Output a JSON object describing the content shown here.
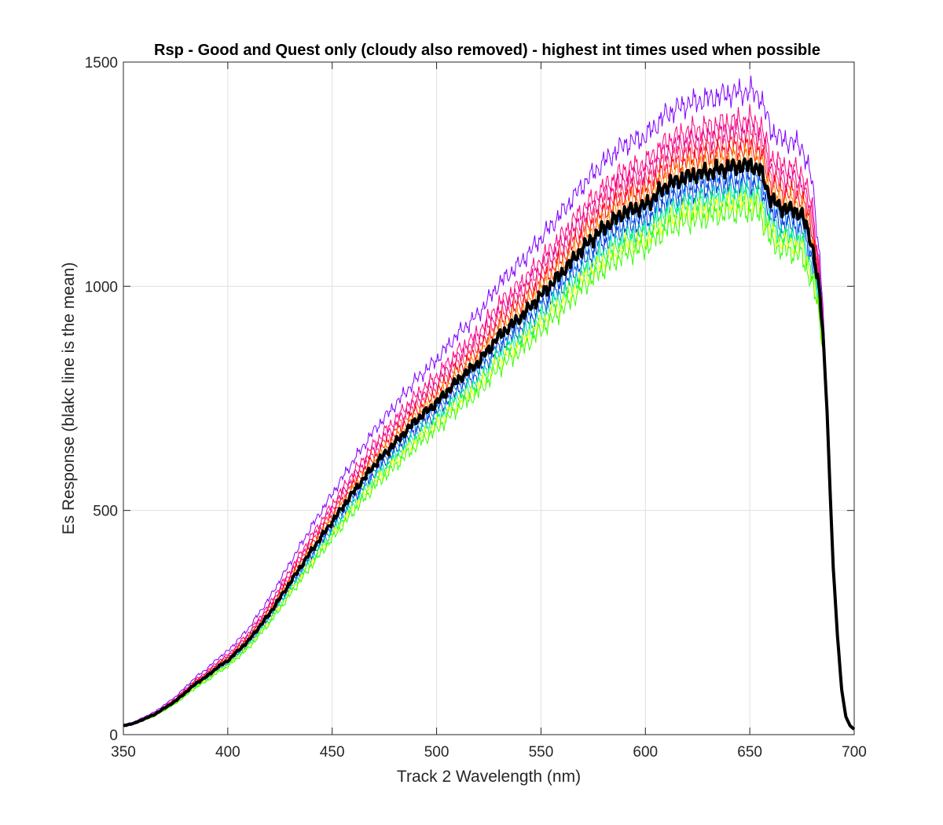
{
  "chart_data": {
    "type": "line",
    "title": "Rsp - Good and Quest only (cloudy also removed) - highest int times used when possible",
    "xlabel": "Track 2 Wavelength (nm)",
    "ylabel": "Es Response (blakc line is the mean)",
    "xlim": [
      350,
      700
    ],
    "ylim": [
      0,
      1500
    ],
    "xticks": [
      350,
      400,
      450,
      500,
      550,
      600,
      650,
      700
    ],
    "yticks": [
      0,
      500,
      1000,
      1500
    ],
    "grid": true,
    "legend": "none",
    "x": [
      350,
      355,
      360,
      365,
      370,
      375,
      380,
      385,
      390,
      395,
      400,
      410,
      420,
      430,
      440,
      450,
      460,
      470,
      480,
      490,
      500,
      510,
      520,
      530,
      540,
      550,
      560,
      570,
      580,
      590,
      600,
      610,
      620,
      630,
      640,
      650,
      655,
      660,
      665,
      670,
      675,
      680,
      683,
      685,
      687,
      688,
      689,
      690,
      692,
      694,
      696,
      698,
      700
    ],
    "mean_series": {
      "name": "",
      "color": "#000000",
      "values": [
        20,
        25,
        35,
        45,
        60,
        75,
        95,
        115,
        130,
        150,
        165,
        210,
        270,
        340,
        410,
        475,
        540,
        600,
        650,
        700,
        740,
        790,
        830,
        890,
        930,
        980,
        1030,
        1085,
        1130,
        1165,
        1180,
        1225,
        1245,
        1255,
        1265,
        1270,
        1260,
        1195,
        1175,
        1170,
        1160,
        1090,
        1000,
        900,
        720,
        600,
        480,
        370,
        220,
        100,
        40,
        20,
        12
      ]
    },
    "spread_series": [
      {
        "color": "#8000FF",
        "scale": 1.13
      },
      {
        "color": "#FF007F",
        "scale": 1.08
      },
      {
        "color": "#E6008C",
        "scale": 1.06
      },
      {
        "color": "#FF3366",
        "scale": 1.045
      },
      {
        "color": "#FF0000",
        "scale": 1.03
      },
      {
        "color": "#FF8000",
        "scale": 1.015
      },
      {
        "color": "#0066FF",
        "scale": 0.985
      },
      {
        "color": "#0033CC",
        "scale": 0.97
      },
      {
        "color": "#00CCCC",
        "scale": 0.955
      },
      {
        "color": "#00FF66",
        "scale": 0.945
      },
      {
        "color": "#FFFF00",
        "scale": 0.935
      },
      {
        "color": "#33FF00",
        "scale": 0.92
      }
    ],
    "colors": {
      "grid": "#e0e0e0",
      "axis": "#262626",
      "background": "#ffffff"
    }
  }
}
